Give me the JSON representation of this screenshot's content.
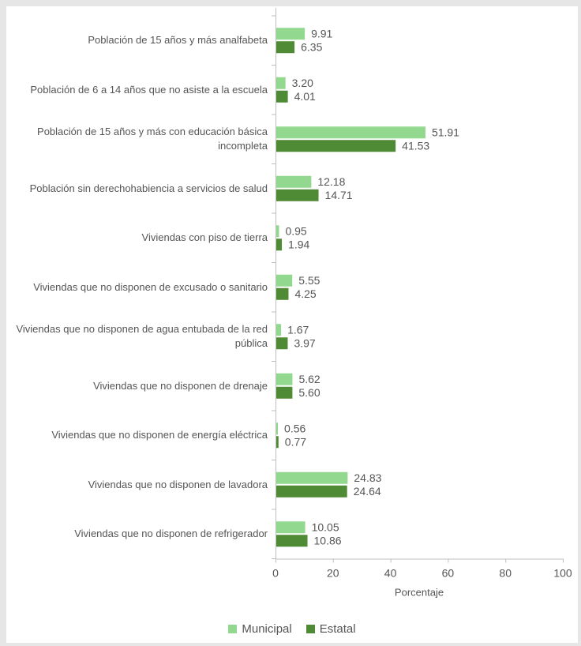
{
  "chart_data": {
    "type": "bar",
    "orientation": "horizontal",
    "categories": [
      "Población de 15 años y más analfabeta",
      "Población de 6 a 14 años que no asiste a la escuela",
      "Población de 15 años y más con educación básica incompleta",
      "Población sin derechohabiencia a servicios de salud",
      "Viviendas con piso de tierra",
      "Viviendas que no disponen de excusado o sanitario",
      "Viviendas que no disponen de agua entubada de la red pública",
      "Viviendas que no disponen de drenaje",
      "Viviendas que no disponen de energía eléctrica",
      "Viviendas que no disponen de lavadora",
      "Viviendas que no disponen de refrigerador"
    ],
    "series": [
      {
        "name": "Municipal",
        "color": "#92d88e",
        "values": [
          9.91,
          3.2,
          51.91,
          12.18,
          0.95,
          5.55,
          1.67,
          5.62,
          0.56,
          24.83,
          10.05
        ],
        "labels": [
          "9.91",
          "3.20",
          "51.91",
          "12.18",
          "0.95",
          "5.55",
          "1.67",
          "5.62",
          "0.56",
          "24.83",
          "10.05"
        ]
      },
      {
        "name": "Estatal",
        "color": "#4f8a34",
        "values": [
          6.35,
          4.01,
          41.53,
          14.71,
          1.94,
          4.25,
          3.97,
          5.6,
          0.77,
          24.64,
          10.86
        ],
        "labels": [
          "6.35",
          "4.01",
          "41.53",
          "14.71",
          "1.94",
          "4.25",
          "3.97",
          "5.60",
          "0.77",
          "24.64",
          "10.86"
        ]
      }
    ],
    "xlim": [
      0,
      100
    ],
    "xticks": [
      "0",
      "20",
      "40",
      "60",
      "80",
      "100"
    ],
    "xlabel": "Porcentaje",
    "ylabel": "",
    "title": "",
    "grid": false,
    "legend_position": "bottom"
  }
}
